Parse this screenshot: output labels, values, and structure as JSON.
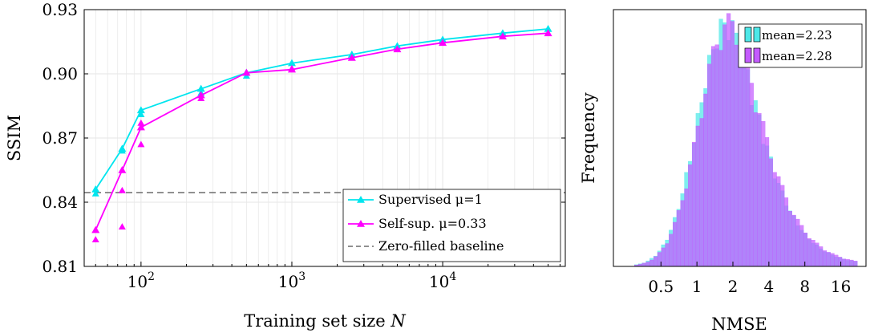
{
  "colors": {
    "supervised": "#00e5ee",
    "selfsup": "#ff00ff",
    "baseline": "#808080",
    "hist_a": "#4ee8e8",
    "hist_b": "#c45cff"
  },
  "chart_data": [
    {
      "type": "line",
      "xlabel": "Training set size N",
      "ylabel": "SSIM",
      "xscale": "log",
      "xlim": [
        42,
        65000
      ],
      "ylim": [
        0.81,
        0.93
      ],
      "yticks": [
        "0.81",
        "0.84",
        "0.87",
        "0.90",
        "0.93"
      ],
      "xticks": [
        {
          "base": "10",
          "exp": "2",
          "value": 100
        },
        {
          "base": "10",
          "exp": "3",
          "value": 1000
        },
        {
          "base": "10",
          "exp": "4",
          "value": 10000
        }
      ],
      "grid": true,
      "legend_position": "bottom-right",
      "series": [
        {
          "name": "Supervised μ=1",
          "x": [
            50,
            75,
            100,
            250,
            500,
            1000,
            2500,
            5000,
            10000,
            25000,
            50000
          ],
          "y": [
            0.846,
            0.865,
            0.883,
            0.893,
            0.9005,
            0.905,
            0.909,
            0.913,
            0.916,
            0.919,
            0.921
          ],
          "extra_points": [
            [
              50,
              0.844
            ],
            [
              75,
              0.864
            ],
            [
              100,
              0.881
            ],
            [
              250,
              0.891
            ],
            [
              500,
              0.899
            ]
          ]
        },
        {
          "name": "Self-sup. μ=0.33",
          "x": [
            50,
            75,
            100,
            250,
            500,
            1000,
            2500,
            5000,
            10000,
            25000,
            50000
          ],
          "y": [
            0.827,
            0.855,
            0.875,
            0.89,
            0.9005,
            0.902,
            0.9075,
            0.9115,
            0.9145,
            0.9175,
            0.919
          ],
          "extra_points": [
            [
              50,
              0.8225
            ],
            [
              75,
              0.8285
            ],
            [
              75,
              0.8455
            ],
            [
              100,
              0.867
            ],
            [
              100,
              0.877
            ],
            [
              250,
              0.8885
            ],
            [
              1000,
              0.9025
            ]
          ]
        },
        {
          "name": "Zero-filled baseline",
          "y": 0.8445
        }
      ]
    },
    {
      "type": "histogram",
      "xlabel": "NMSE",
      "ylabel": "Frequency",
      "xscale": "log",
      "xlim": [
        0.2,
        26
      ],
      "xticks": [
        "0.5",
        "1",
        "2",
        "4",
        "8",
        "16"
      ],
      "xtick_values": [
        0.5,
        1,
        2,
        4,
        8,
        16
      ],
      "legend_position": "top-right",
      "series": [
        {
          "name": "mean=2.23",
          "log_mean": 0.57,
          "log_sd": 0.55
        },
        {
          "name": "mean=2.28",
          "log_mean": 0.6,
          "log_sd": 0.55
        }
      ]
    }
  ]
}
